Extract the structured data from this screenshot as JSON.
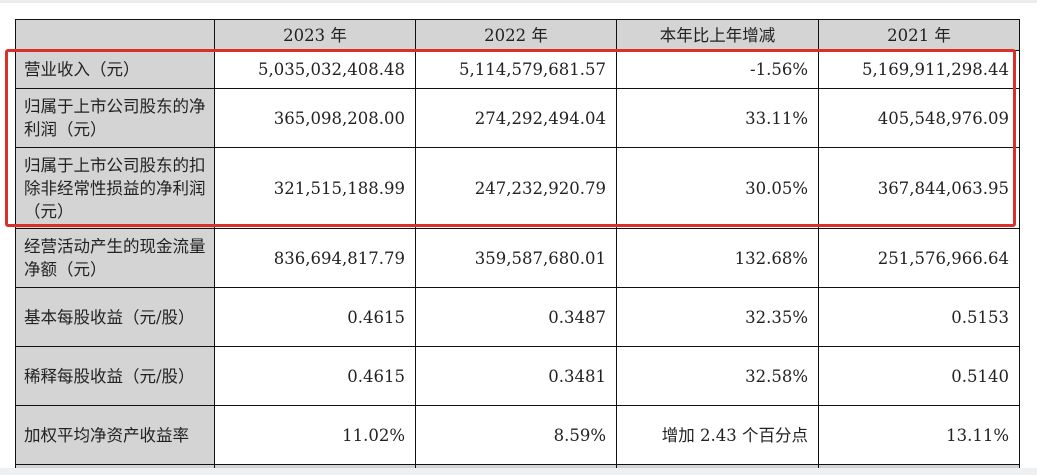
{
  "table": {
    "headers": [
      "",
      "2023 年",
      "2022 年",
      "本年比上年增减",
      "2021 年"
    ],
    "rows": [
      {
        "label": "营业收入（元）",
        "v2023": "5,035,032,408.48",
        "v2022": "5,114,579,681.57",
        "change": "-1.56%",
        "v2021": "5,169,911,298.44"
      },
      {
        "label": "归属于上市公司股东的净利润（元）",
        "v2023": "365,098,208.00",
        "v2022": "274,292,494.04",
        "change": "33.11%",
        "v2021": "405,548,976.09"
      },
      {
        "label": "归属于上市公司股东的扣除非经常性损益的净利润（元）",
        "v2023": "321,515,188.99",
        "v2022": "247,232,920.79",
        "change": "30.05%",
        "v2021": "367,844,063.95"
      },
      {
        "label": "经营活动产生的现金流量净额（元）",
        "v2023": "836,694,817.79",
        "v2022": "359,587,680.01",
        "change": "132.68%",
        "v2021": "251,576,966.64"
      },
      {
        "label": "基本每股收益（元/股）",
        "v2023": "0.4615",
        "v2022": "0.3487",
        "change": "32.35%",
        "v2021": "0.5153"
      },
      {
        "label": "稀释每股收益（元/股）",
        "v2023": "0.4615",
        "v2022": "0.3481",
        "change": "32.58%",
        "v2021": "0.5140"
      },
      {
        "label": "加权平均净资产收益率",
        "v2023": "11.02%",
        "v2022": "8.59%",
        "change": "增加 2.43 个百分点",
        "v2021": "13.11%"
      }
    ]
  },
  "highlight": {
    "color": "#d9302a",
    "rows_highlighted": [
      0,
      1,
      2
    ]
  }
}
